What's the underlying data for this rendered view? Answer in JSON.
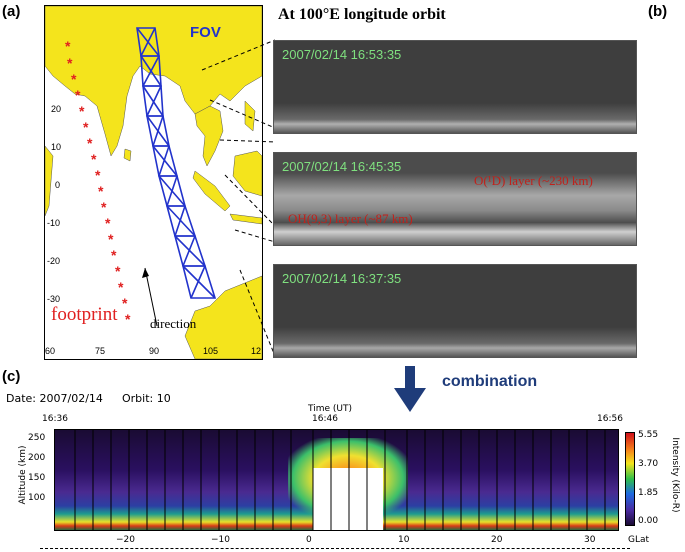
{
  "panel_labels": {
    "a": "(a)",
    "b": "(b)",
    "c": "(c)"
  },
  "title": "At 100°E longitude orbit",
  "map": {
    "fov_label": "FOV",
    "footprint_label": "footprint",
    "direction_label": "direction",
    "lat_ticks": [
      "20",
      "10",
      "0",
      "-10",
      "-20",
      "-30"
    ],
    "lon_ticks": [
      "60",
      "75",
      "90",
      "105",
      "12"
    ],
    "colors": {
      "land": "#f4e41c",
      "ocean": "#ffffff",
      "fov": "#2233cc",
      "footprint": "#e02020"
    }
  },
  "images": [
    {
      "timestamp": "2007/02/14   16:53:35"
    },
    {
      "timestamp": "2007/02/14   16:45:35",
      "label_o1d": "O(¹D) layer (~230 km)",
      "label_oh": "OH(9,3) layer (~87 km)"
    },
    {
      "timestamp": "2007/02/14   16:37:35"
    }
  ],
  "arrow_label": "combination",
  "keogram": {
    "date_text": "Date: 2007/02/14",
    "orbit_text": "Orbit: 10",
    "time_axis_label": "Time (UT)",
    "time_ticks": [
      "16:36",
      "16:46",
      "16:56"
    ],
    "y_label": "Altitude (km)",
    "y_ticks": [
      "250",
      "200",
      "150",
      "100"
    ],
    "x_ticks": [
      "−20",
      "−10",
      "0",
      "10",
      "20",
      "30"
    ],
    "x_label": "GLat",
    "colorbar_label": "Intensity (Kilo-R)",
    "colorbar_ticks": [
      "5.55",
      "3.70",
      "1.85",
      "0.00"
    ]
  }
}
